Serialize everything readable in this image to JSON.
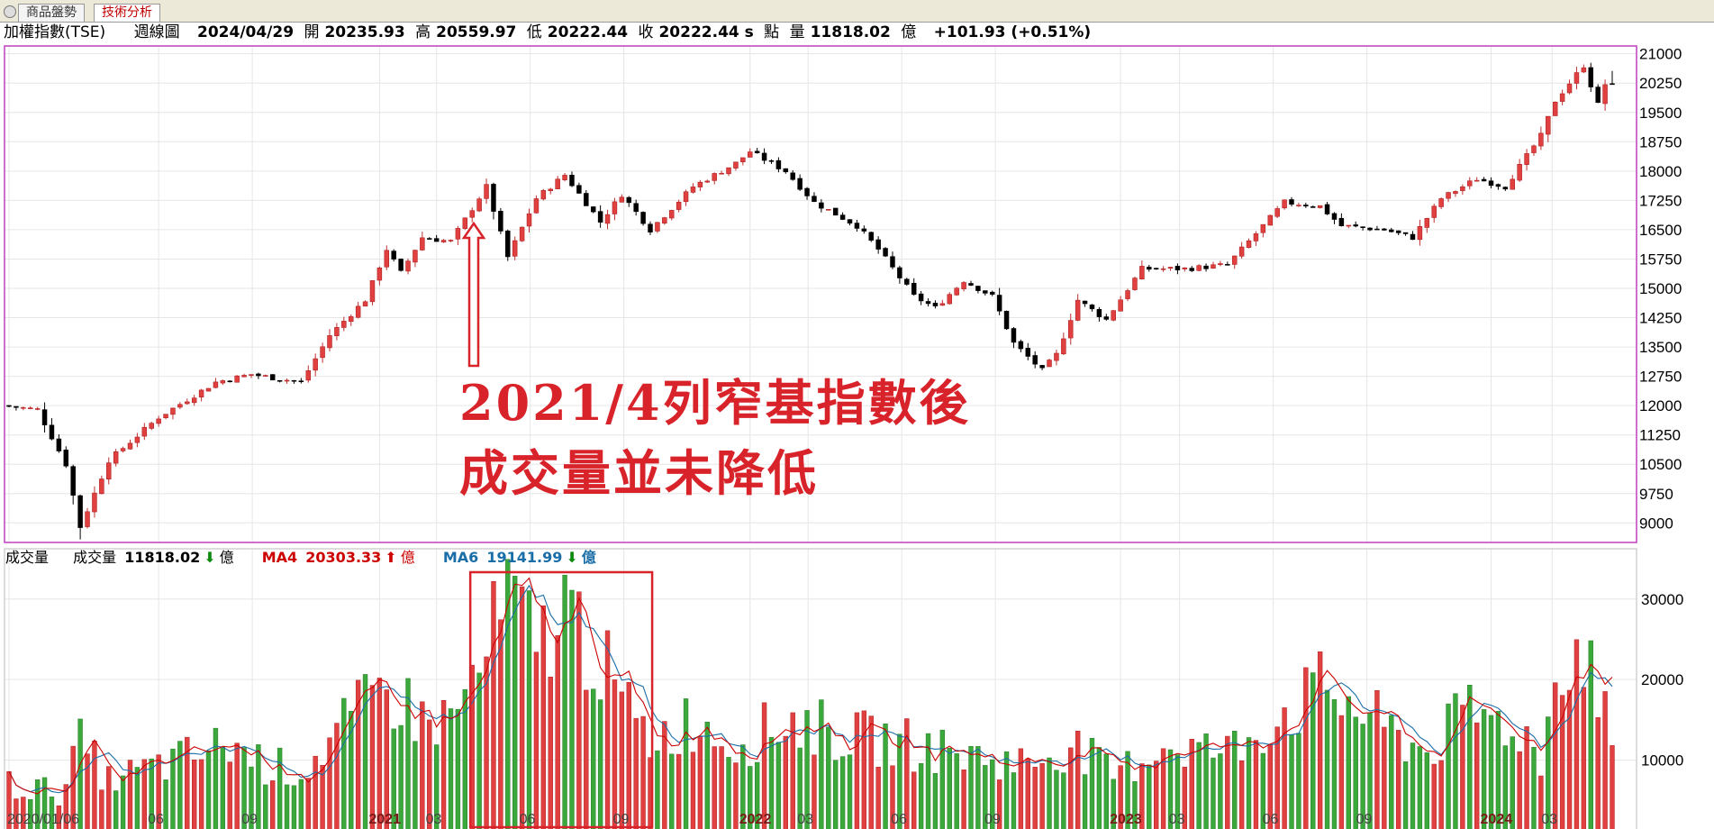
{
  "tabs": [
    {
      "label": "商品盤勢"
    },
    {
      "label": "技術分析"
    }
  ],
  "header": {
    "symbol": "加權指數(TSE)",
    "period": "週線圖",
    "date": "2024/04/29",
    "open_label": "開",
    "open": "20235.93",
    "high_label": "高",
    "high": "20559.97",
    "low_label": "低",
    "low": "20222.44",
    "close_label": "收",
    "close": "20222.44 s",
    "unit_label": "點",
    "volume_label": "量",
    "volume": "11818.02",
    "volume_unit": "億",
    "change": "+101.93 (+0.51%)"
  },
  "volume_legend": {
    "title": "成交量",
    "vol_label": "成交量",
    "vol_value": "11818.02",
    "vol_unit": "億",
    "ma4_label": "MA4",
    "ma4_value": "20303.33",
    "ma4_unit": "億",
    "ma6_label": "MA6",
    "ma6_value": "19141.99",
    "ma6_unit": "億"
  },
  "annotation": {
    "line1": "2021/4列窄基指數後",
    "line2": "成交量並未降低"
  },
  "colors": {
    "up": "#e04040",
    "down": "#000000",
    "vol_up": "#e04040",
    "vol_down": "#3aa83a",
    "ma4": "#cc0000",
    "ma6": "#1a6ea8",
    "frame": "#c03ec0",
    "annotation": "#d9232a"
  },
  "chart_data": [
    {
      "type": "candlestick",
      "title": "",
      "ylim": [
        8500,
        21200
      ],
      "y_ticks": [
        9000,
        9750,
        10500,
        11250,
        12000,
        12750,
        13500,
        14250,
        15000,
        15750,
        16500,
        17250,
        18000,
        18750,
        19500,
        20250,
        21000
      ],
      "grid": true,
      "anchors": [
        [
          "2020/01/06",
          12000
        ],
        [
          "2020/02/10",
          11900
        ],
        [
          "2020/03/09",
          10500
        ],
        [
          "2020/03/23",
          8900
        ],
        [
          "2020/04/20",
          10600
        ],
        [
          "2020/06/08",
          11700
        ],
        [
          "2020/08/03",
          12600
        ],
        [
          "2020/09/07",
          12800
        ],
        [
          "2020/10/26",
          12600
        ],
        [
          "2020/11/23",
          13800
        ],
        [
          "2020/12/28",
          14700
        ],
        [
          "2021/01/18",
          16000
        ],
        [
          "2021/02/01",
          15400
        ],
        [
          "2021/02/22",
          16300
        ],
        [
          "2021/03/22",
          16200
        ],
        [
          "2021/04/26",
          17600
        ],
        [
          "2021/05/17",
          15800
        ],
        [
          "2021/06/14",
          17300
        ],
        [
          "2021/07/12",
          17900
        ],
        [
          "2021/08/16",
          16700
        ],
        [
          "2021/09/06",
          17400
        ],
        [
          "2021/10/04",
          16500
        ],
        [
          "2021/11/15",
          17600
        ],
        [
          "2021/12/27",
          18200
        ],
        [
          "2022/01/10",
          18500
        ],
        [
          "2022/02/14",
          18000
        ],
        [
          "2022/03/14",
          17200
        ],
        [
          "2022/04/25",
          16600
        ],
        [
          "2022/05/16",
          16000
        ],
        [
          "2022/06/20",
          14800
        ],
        [
          "2022/07/11",
          14500
        ],
        [
          "2022/08/08",
          15200
        ],
        [
          "2022/09/05",
          14800
        ],
        [
          "2022/09/26",
          13600
        ],
        [
          "2022/10/24",
          12900
        ],
        [
          "2022/11/07",
          13300
        ],
        [
          "2022/11/28",
          14700
        ],
        [
          "2022/12/26",
          14200
        ],
        [
          "2023/01/30",
          15500
        ],
        [
          "2023/03/13",
          15500
        ],
        [
          "2023/04/24",
          15600
        ],
        [
          "2023/05/29",
          16600
        ],
        [
          "2023/06/19",
          17200
        ],
        [
          "2023/07/24",
          17100
        ],
        [
          "2023/08/14",
          16600
        ],
        [
          "2023/09/25",
          16500
        ],
        [
          "2023/10/23",
          16300
        ],
        [
          "2023/11/20",
          17300
        ],
        [
          "2023/12/25",
          17800
        ],
        [
          "2024/01/22",
          17600
        ],
        [
          "2024/02/26",
          18900
        ],
        [
          "2024/03/11",
          19800
        ],
        [
          "2024/04/08",
          20700
        ],
        [
          "2024/04/22",
          19700
        ],
        [
          "2024/04/29",
          20222.44
        ]
      ],
      "last_candle": {
        "open": 20235.93,
        "high": 20559.97,
        "low": 20222.44,
        "close": 20222.44
      }
    },
    {
      "type": "bar",
      "title": "",
      "unit": "億",
      "ylim": [
        0,
        34000
      ],
      "y_ticks": [
        10000,
        20000,
        30000
      ],
      "x_tick_labels": [
        "2020/01/06",
        "06",
        "09",
        "2021",
        "03",
        "06",
        "09",
        "2022",
        "03",
        "06",
        "09",
        "2023",
        "03",
        "06",
        "09",
        "2024",
        "03"
      ],
      "x_tick_dates": [
        "2020/01/06",
        "2020/06/01",
        "2020/09/01",
        "2021/01/04",
        "2021/03/01",
        "2021/06/01",
        "2021/09/01",
        "2022/01/03",
        "2022/03/01",
        "2022/06/01",
        "2022/09/01",
        "2023/01/02",
        "2023/03/01",
        "2023/06/01",
        "2023/09/01",
        "2024/01/01",
        "2024/03/01"
      ],
      "vol_anchors": [
        [
          "2020/01/06",
          7000
        ],
        [
          "2020/02/24",
          6000
        ],
        [
          "2020/03/16",
          12000
        ],
        [
          "2020/04/13",
          7500
        ],
        [
          "2020/06/08",
          9500
        ],
        [
          "2020/08/10",
          12000
        ],
        [
          "2020/09/14",
          9500
        ],
        [
          "2020/10/19",
          8500
        ],
        [
          "2020/11/30",
          14000
        ],
        [
          "2021/01/11",
          19000
        ],
        [
          "2021/02/15",
          15000
        ],
        [
          "2021/03/15",
          15000
        ],
        [
          "2021/04/12",
          21000
        ],
        [
          "2021/05/10",
          30000
        ],
        [
          "2021/06/07",
          24000
        ],
        [
          "2021/07/05",
          29000
        ],
        [
          "2021/08/02",
          24000
        ],
        [
          "2021/08/30",
          17000
        ],
        [
          "2021/09/27",
          12500
        ],
        [
          "2021/11/08",
          15000
        ],
        [
          "2021/12/20",
          12000
        ],
        [
          "2022/02/14",
          15000
        ],
        [
          "2022/04/04",
          13000
        ],
        [
          "2022/06/06",
          12000
        ],
        [
          "2022/08/08",
          10500
        ],
        [
          "2022/10/03",
          9500
        ],
        [
          "2022/11/14",
          12000
        ],
        [
          "2022/12/26",
          8000
        ],
        [
          "2023/02/13",
          12000
        ],
        [
          "2023/04/17",
          11000
        ],
        [
          "2023/06/12",
          16000
        ],
        [
          "2023/07/24",
          19000
        ],
        [
          "2023/09/18",
          14000
        ],
        [
          "2023/10/30",
          11000
        ],
        [
          "2023/12/11",
          16000
        ],
        [
          "2024/01/29",
          14000
        ],
        [
          "2024/02/19",
          10000
        ],
        [
          "2024/03/11",
          24000
        ],
        [
          "2024/04/08",
          23000
        ],
        [
          "2024/04/29",
          11818.02
        ]
      ],
      "ma4_last": 20303.33,
      "ma6_last": 19141.99,
      "highlight_range": [
        "2021/04/12",
        "2021/09/20"
      ]
    }
  ]
}
